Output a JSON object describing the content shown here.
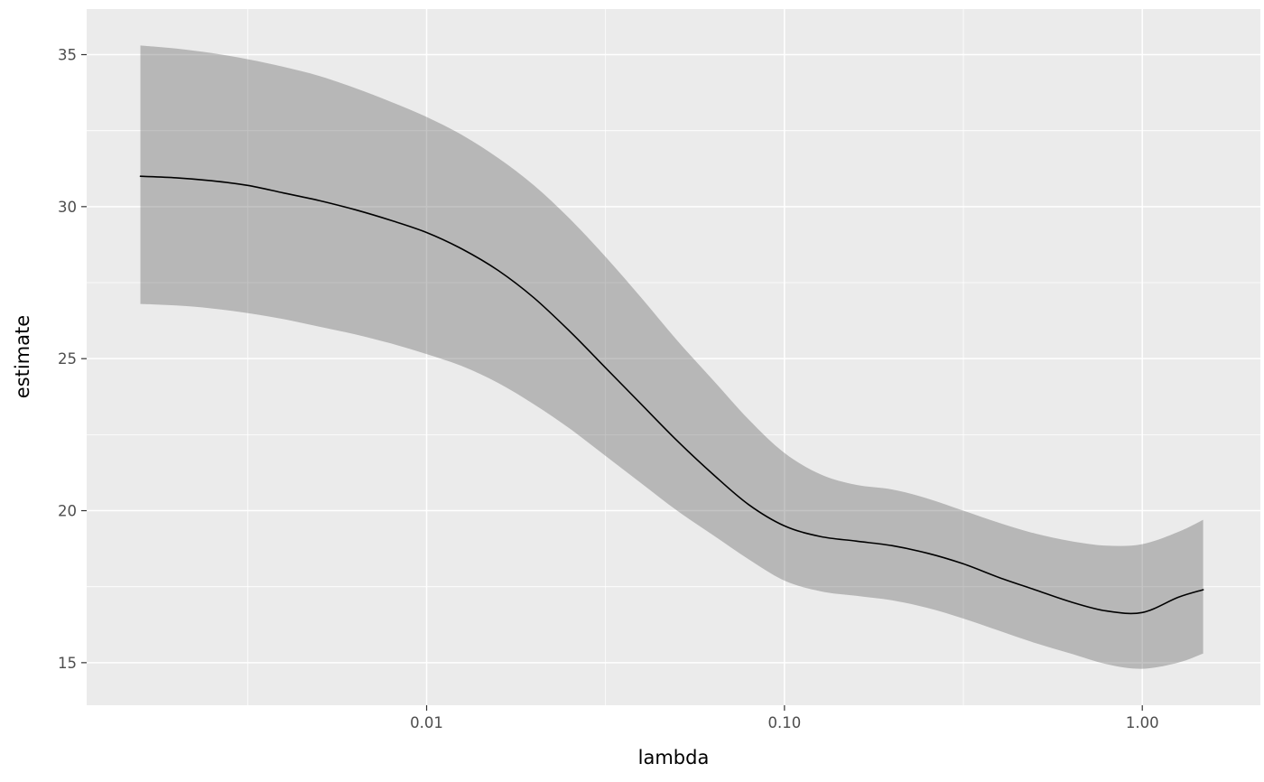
{
  "chart_data": {
    "type": "line",
    "title": "",
    "xlabel": "lambda",
    "ylabel": "estimate",
    "x_scale": "log10",
    "grid": "on",
    "legend": "none",
    "x_domain_log10": [
      -2.95,
      0.33
    ],
    "y_domain": [
      13.6,
      36.5
    ],
    "x_major_ticks": [
      {
        "value": 0.01,
        "label": "0.01",
        "log10": -2
      },
      {
        "value": 0.1,
        "label": "0.10",
        "log10": -1
      },
      {
        "value": 1.0,
        "label": "1.00",
        "log10": 0
      }
    ],
    "x_minor_ticks_log10": [
      -2.5,
      -1.5,
      -0.5
    ],
    "y_major_ticks": [
      15,
      20,
      25,
      30,
      35
    ],
    "y_minor_ticks": [
      17.5,
      22.5,
      27.5,
      32.5
    ],
    "x_log10": [
      -2.8,
      -2.7,
      -2.6,
      -2.5,
      -2.4,
      -2.3,
      -2.2,
      -2.1,
      -2.0,
      -1.9,
      -1.8,
      -1.7,
      -1.6,
      -1.5,
      -1.4,
      -1.3,
      -1.2,
      -1.1,
      -1.0,
      -0.9,
      -0.8,
      -0.7,
      -0.6,
      -0.5,
      -0.4,
      -0.3,
      -0.2,
      -0.1,
      0.0,
      0.1,
      0.17
    ],
    "series": [
      {
        "name": "estimate",
        "color": "#000000",
        "values": [
          31.0,
          30.95,
          30.85,
          30.7,
          30.45,
          30.2,
          29.9,
          29.55,
          29.15,
          28.6,
          27.9,
          27.0,
          25.9,
          24.7,
          23.5,
          22.3,
          21.2,
          20.2,
          19.5,
          19.15,
          19.0,
          18.85,
          18.6,
          18.25,
          17.8,
          17.4,
          17.0,
          16.7,
          16.65,
          17.15,
          17.4
        ]
      }
    ],
    "ribbon": {
      "name": "confidence-band",
      "fill": "rgba(100,100,100,0.38)",
      "upper": [
        35.3,
        35.2,
        35.05,
        34.85,
        34.6,
        34.3,
        33.9,
        33.45,
        32.95,
        32.35,
        31.6,
        30.7,
        29.6,
        28.35,
        27.0,
        25.6,
        24.3,
        23.0,
        21.9,
        21.2,
        20.85,
        20.7,
        20.4,
        20.0,
        19.6,
        19.25,
        19.0,
        18.85,
        18.9,
        19.3,
        19.7
      ],
      "lower": [
        26.8,
        26.75,
        26.65,
        26.5,
        26.3,
        26.05,
        25.8,
        25.5,
        25.15,
        24.75,
        24.2,
        23.5,
        22.7,
        21.8,
        20.9,
        20.0,
        19.2,
        18.4,
        17.7,
        17.35,
        17.2,
        17.05,
        16.8,
        16.45,
        16.05,
        15.65,
        15.3,
        14.95,
        14.8,
        15.0,
        15.3
      ]
    },
    "colors": {
      "figure_background": "#FFFFFF",
      "panel_background": "#EBEBEB",
      "grid": "#FFFFFF",
      "tick_label": "#4D4D4D",
      "tick_mark": "#333333",
      "axis_title": "#000000",
      "line": "#000000"
    }
  }
}
